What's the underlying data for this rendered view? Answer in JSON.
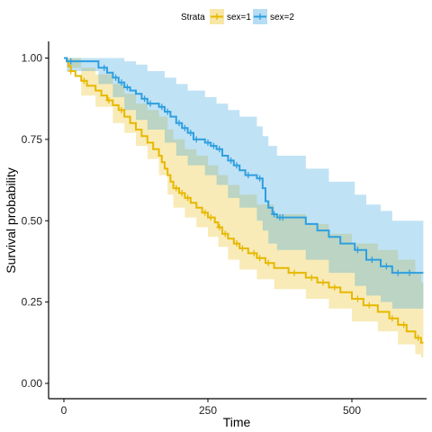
{
  "chart_data": {
    "type": "line",
    "subtype": "kaplan-meier",
    "xlabel": "Time",
    "ylabel": "Survival probability",
    "xlim": [
      -30,
      630
    ],
    "ylim": [
      -0.05,
      1.05
    ],
    "x_ticks": [
      0,
      250,
      500
    ],
    "y_ticks": [
      0.0,
      0.25,
      0.5,
      0.75,
      1.0
    ],
    "y_tick_labels": [
      "0.00",
      "0.25",
      "0.50",
      "0.75",
      "1.00"
    ],
    "x_tick_labels": [
      "0",
      "250",
      "500"
    ],
    "grid": false,
    "legend": {
      "title": "Strata",
      "position": "top",
      "entries": [
        "sex=1",
        "sex=2"
      ]
    },
    "series": [
      {
        "name": "sex=1",
        "color": "#E7B800",
        "steps": [
          [
            0,
            1.0
          ],
          [
            5,
            0.99
          ],
          [
            8,
            0.975
          ],
          [
            12,
            0.96
          ],
          [
            20,
            0.945
          ],
          [
            30,
            0.93
          ],
          [
            40,
            0.915
          ],
          [
            55,
            0.9
          ],
          [
            65,
            0.885
          ],
          [
            75,
            0.87
          ],
          [
            85,
            0.855
          ],
          [
            95,
            0.84
          ],
          [
            105,
            0.82
          ],
          [
            115,
            0.8
          ],
          [
            125,
            0.78
          ],
          [
            135,
            0.76
          ],
          [
            145,
            0.74
          ],
          [
            155,
            0.72
          ],
          [
            165,
            0.7
          ],
          [
            170,
            0.68
          ],
          [
            175,
            0.66
          ],
          [
            180,
            0.64
          ],
          [
            185,
            0.62
          ],
          [
            190,
            0.6
          ],
          [
            200,
            0.585
          ],
          [
            210,
            0.57
          ],
          [
            220,
            0.555
          ],
          [
            230,
            0.54
          ],
          [
            240,
            0.525
          ],
          [
            250,
            0.51
          ],
          [
            262,
            0.495
          ],
          [
            268,
            0.48
          ],
          [
            275,
            0.46
          ],
          [
            285,
            0.445
          ],
          [
            295,
            0.43
          ],
          [
            305,
            0.415
          ],
          [
            320,
            0.4
          ],
          [
            335,
            0.385
          ],
          [
            350,
            0.37
          ],
          [
            365,
            0.355
          ],
          [
            390,
            0.34
          ],
          [
            420,
            0.325
          ],
          [
            440,
            0.31
          ],
          [
            460,
            0.295
          ],
          [
            480,
            0.28
          ],
          [
            500,
            0.26
          ],
          [
            520,
            0.24
          ],
          [
            545,
            0.22
          ],
          [
            565,
            0.2
          ],
          [
            580,
            0.18
          ],
          [
            595,
            0.16
          ],
          [
            610,
            0.14
          ],
          [
            620,
            0.125
          ]
        ],
        "lower": [
          [
            0,
            1.0
          ],
          [
            5,
            0.97
          ],
          [
            30,
            0.885
          ],
          [
            55,
            0.85
          ],
          [
            85,
            0.8
          ],
          [
            105,
            0.77
          ],
          [
            125,
            0.73
          ],
          [
            145,
            0.69
          ],
          [
            165,
            0.64
          ],
          [
            180,
            0.58
          ],
          [
            190,
            0.54
          ],
          [
            210,
            0.51
          ],
          [
            230,
            0.48
          ],
          [
            250,
            0.45
          ],
          [
            268,
            0.42
          ],
          [
            285,
            0.38
          ],
          [
            305,
            0.35
          ],
          [
            335,
            0.32
          ],
          [
            365,
            0.29
          ],
          [
            420,
            0.26
          ],
          [
            460,
            0.23
          ],
          [
            500,
            0.19
          ],
          [
            545,
            0.16
          ],
          [
            580,
            0.12
          ],
          [
            610,
            0.09
          ],
          [
            620,
            0.08
          ]
        ],
        "upper": [
          [
            0,
            1.0
          ],
          [
            5,
            1.0
          ],
          [
            30,
            0.97
          ],
          [
            55,
            0.95
          ],
          [
            85,
            0.92
          ],
          [
            105,
            0.89
          ],
          [
            125,
            0.86
          ],
          [
            145,
            0.84
          ],
          [
            165,
            0.82
          ],
          [
            180,
            0.78
          ],
          [
            190,
            0.75
          ],
          [
            210,
            0.72
          ],
          [
            230,
            0.7
          ],
          [
            250,
            0.67
          ],
          [
            268,
            0.64
          ],
          [
            285,
            0.61
          ],
          [
            305,
            0.58
          ],
          [
            335,
            0.55
          ],
          [
            365,
            0.52
          ],
          [
            420,
            0.49
          ],
          [
            460,
            0.46
          ],
          [
            500,
            0.43
          ],
          [
            545,
            0.41
          ],
          [
            580,
            0.38
          ],
          [
            610,
            0.34
          ],
          [
            620,
            0.31
          ]
        ],
        "censored": [
          [
            12,
            0.96
          ],
          [
            35,
            0.93
          ],
          [
            78,
            0.87
          ],
          [
            100,
            0.84
          ],
          [
            195,
            0.6
          ],
          [
            205,
            0.585
          ],
          [
            215,
            0.57
          ],
          [
            245,
            0.525
          ],
          [
            255,
            0.51
          ],
          [
            270,
            0.48
          ],
          [
            280,
            0.46
          ],
          [
            300,
            0.43
          ],
          [
            310,
            0.415
          ],
          [
            330,
            0.4
          ],
          [
            340,
            0.385
          ],
          [
            355,
            0.37
          ],
          [
            400,
            0.34
          ],
          [
            430,
            0.325
          ],
          [
            450,
            0.31
          ],
          [
            470,
            0.295
          ],
          [
            510,
            0.26
          ],
          [
            530,
            0.24
          ],
          [
            570,
            0.2
          ],
          [
            590,
            0.18
          ],
          [
            615,
            0.14
          ]
        ]
      },
      {
        "name": "sex=2",
        "color": "#2E9FDF",
        "steps": [
          [
            0,
            1.0
          ],
          [
            5,
            0.99
          ],
          [
            60,
            0.97
          ],
          [
            75,
            0.955
          ],
          [
            85,
            0.94
          ],
          [
            95,
            0.925
          ],
          [
            105,
            0.91
          ],
          [
            115,
            0.9
          ],
          [
            125,
            0.89
          ],
          [
            135,
            0.875
          ],
          [
            145,
            0.86
          ],
          [
            165,
            0.85
          ],
          [
            175,
            0.835
          ],
          [
            185,
            0.82
          ],
          [
            195,
            0.8
          ],
          [
            205,
            0.785
          ],
          [
            215,
            0.77
          ],
          [
            225,
            0.75
          ],
          [
            245,
            0.74
          ],
          [
            255,
            0.73
          ],
          [
            265,
            0.72
          ],
          [
            275,
            0.7
          ],
          [
            285,
            0.685
          ],
          [
            295,
            0.67
          ],
          [
            305,
            0.655
          ],
          [
            315,
            0.64
          ],
          [
            335,
            0.63
          ],
          [
            345,
            0.6
          ],
          [
            350,
            0.56
          ],
          [
            355,
            0.54
          ],
          [
            362,
            0.52
          ],
          [
            370,
            0.51
          ],
          [
            420,
            0.49
          ],
          [
            440,
            0.47
          ],
          [
            460,
            0.45
          ],
          [
            480,
            0.43
          ],
          [
            505,
            0.41
          ],
          [
            525,
            0.38
          ],
          [
            550,
            0.36
          ],
          [
            570,
            0.34
          ],
          [
            620,
            0.34
          ]
        ],
        "lower": [
          [
            0,
            1.0
          ],
          [
            5,
            0.96
          ],
          [
            60,
            0.92
          ],
          [
            85,
            0.88
          ],
          [
            105,
            0.84
          ],
          [
            125,
            0.81
          ],
          [
            145,
            0.78
          ],
          [
            175,
            0.74
          ],
          [
            195,
            0.7
          ],
          [
            215,
            0.67
          ],
          [
            245,
            0.64
          ],
          [
            265,
            0.61
          ],
          [
            285,
            0.57
          ],
          [
            305,
            0.54
          ],
          [
            335,
            0.5
          ],
          [
            345,
            0.47
          ],
          [
            355,
            0.43
          ],
          [
            370,
            0.41
          ],
          [
            420,
            0.38
          ],
          [
            460,
            0.34
          ],
          [
            505,
            0.3
          ],
          [
            525,
            0.27
          ],
          [
            550,
            0.25
          ],
          [
            570,
            0.23
          ],
          [
            620,
            0.23
          ]
        ],
        "upper": [
          [
            0,
            1.0
          ],
          [
            5,
            1.0
          ],
          [
            60,
            1.0
          ],
          [
            85,
            1.0
          ],
          [
            105,
            0.99
          ],
          [
            125,
            0.98
          ],
          [
            145,
            0.96
          ],
          [
            175,
            0.94
          ],
          [
            195,
            0.92
          ],
          [
            215,
            0.9
          ],
          [
            245,
            0.88
          ],
          [
            265,
            0.86
          ],
          [
            285,
            0.84
          ],
          [
            305,
            0.82
          ],
          [
            335,
            0.79
          ],
          [
            345,
            0.76
          ],
          [
            355,
            0.73
          ],
          [
            370,
            0.7
          ],
          [
            420,
            0.66
          ],
          [
            460,
            0.62
          ],
          [
            505,
            0.58
          ],
          [
            525,
            0.55
          ],
          [
            550,
            0.53
          ],
          [
            570,
            0.5
          ],
          [
            620,
            0.5
          ]
        ],
        "censored": [
          [
            12,
            0.99
          ],
          [
            70,
            0.97
          ],
          [
            90,
            0.94
          ],
          [
            100,
            0.925
          ],
          [
            110,
            0.91
          ],
          [
            140,
            0.875
          ],
          [
            150,
            0.86
          ],
          [
            170,
            0.85
          ],
          [
            180,
            0.835
          ],
          [
            200,
            0.8
          ],
          [
            210,
            0.785
          ],
          [
            220,
            0.77
          ],
          [
            230,
            0.75
          ],
          [
            250,
            0.74
          ],
          [
            260,
            0.73
          ],
          [
            270,
            0.72
          ],
          [
            290,
            0.685
          ],
          [
            300,
            0.67
          ],
          [
            320,
            0.64
          ],
          [
            340,
            0.63
          ],
          [
            365,
            0.52
          ],
          [
            375,
            0.51
          ],
          [
            380,
            0.51
          ],
          [
            510,
            0.41
          ],
          [
            535,
            0.38
          ],
          [
            560,
            0.36
          ],
          [
            580,
            0.34
          ],
          [
            600,
            0.34
          ]
        ]
      }
    ]
  }
}
